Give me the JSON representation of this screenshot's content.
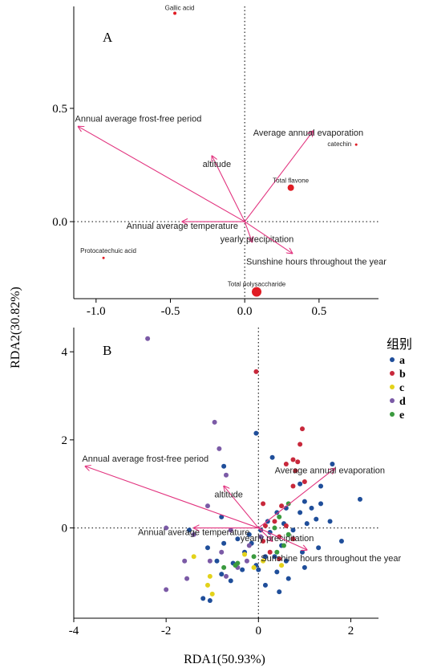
{
  "chart_data": [
    {
      "panel": "A",
      "type": "scatter",
      "xlim": [
        -1.15,
        0.9
      ],
      "ylim": [
        -0.34,
        0.95
      ],
      "x_ticks": [
        -1.0,
        -0.5,
        0.0,
        0.5
      ],
      "y_ticks": [
        0.0,
        0.5
      ],
      "grid": false,
      "species": [
        {
          "label": "Gallic acid",
          "x": -0.47,
          "y": 0.92,
          "size": 2
        },
        {
          "label": "catechin",
          "x": 0.75,
          "y": 0.34,
          "size": 1.5
        },
        {
          "label": "Total flavone",
          "x": 0.31,
          "y": 0.15,
          "size": 4
        },
        {
          "label": "Protocatechuic acid",
          "x": -0.95,
          "y": -0.16,
          "size": 1.5
        },
        {
          "label": "Total polysaccharide",
          "x": 0.08,
          "y": -0.31,
          "size": 6
        }
      ],
      "vectors": [
        {
          "label": "Annual average frost-free period",
          "x": -1.12,
          "y": 0.42
        },
        {
          "label": "Average annual evaporation",
          "x": 0.46,
          "y": 0.4
        },
        {
          "label": "altitude",
          "x": -0.22,
          "y": 0.29
        },
        {
          "label": "Annual average temperature",
          "x": -0.42,
          "y": 0.0
        },
        {
          "label": "yearly precipitation",
          "x": 0.05,
          "y": -0.09
        },
        {
          "label": "Sunshine hours throughout the year",
          "x": 0.32,
          "y": -0.14
        }
      ]
    },
    {
      "panel": "B",
      "type": "scatter",
      "xlim": [
        -4.0,
        2.6
      ],
      "ylim": [
        -2.05,
        4.55
      ],
      "x_ticks": [
        -4,
        -2,
        0,
        2
      ],
      "y_ticks": [
        0,
        2,
        4
      ],
      "grid": false,
      "legend": {
        "title": "组别",
        "placement": "right"
      },
      "groups": [
        {
          "name": "a",
          "color": "#1f4e9a",
          "points": [
            [
              -0.05,
              2.15
            ],
            [
              0.3,
              1.6
            ],
            [
              1.6,
              1.45
            ],
            [
              2.2,
              0.65
            ],
            [
              1.35,
              0.95
            ],
            [
              1.0,
              0.6
            ],
            [
              1.15,
              0.45
            ],
            [
              1.35,
              0.55
            ],
            [
              0.9,
              0.35
            ],
            [
              0.6,
              0.45
            ],
            [
              0.4,
              0.35
            ],
            [
              0.55,
              0.1
            ],
            [
              0.2,
              0.15
            ],
            [
              1.25,
              0.2
            ],
            [
              0.75,
              -0.05
            ],
            [
              1.8,
              -0.3
            ],
            [
              1.3,
              -0.45
            ],
            [
              0.95,
              -0.55
            ],
            [
              0.5,
              -0.4
            ],
            [
              0.05,
              -0.05
            ],
            [
              -0.2,
              -0.15
            ],
            [
              -0.45,
              -0.25
            ],
            [
              -0.75,
              -0.35
            ],
            [
              -1.1,
              -0.45
            ],
            [
              -0.3,
              -0.55
            ],
            [
              0.15,
              -0.65
            ],
            [
              0.6,
              -0.75
            ],
            [
              1.0,
              -0.9
            ],
            [
              0.4,
              -1.0
            ],
            [
              -0.05,
              -0.85
            ],
            [
              -0.55,
              -0.8
            ],
            [
              -0.8,
              -1.05
            ],
            [
              -1.2,
              -1.6
            ],
            [
              -1.05,
              -1.65
            ],
            [
              -0.6,
              -1.2
            ],
            [
              0.15,
              -1.3
            ],
            [
              0.45,
              -1.45
            ],
            [
              -0.35,
              -0.95
            ],
            [
              -0.75,
              1.4
            ],
            [
              -0.8,
              0.25
            ],
            [
              0.9,
              1.0
            ],
            [
              1.05,
              0.1
            ],
            [
              -0.15,
              -0.35
            ],
            [
              0.25,
              -0.1
            ],
            [
              0.65,
              -1.15
            ],
            [
              -1.5,
              -0.05
            ],
            [
              0.0,
              -0.95
            ],
            [
              -0.9,
              -0.75
            ],
            [
              0.35,
              -0.65
            ],
            [
              1.55,
              0.15
            ]
          ]
        },
        {
          "name": "b",
          "color": "#c8283b",
          "points": [
            [
              -0.05,
              3.55
            ],
            [
              0.95,
              2.25
            ],
            [
              0.9,
              1.9
            ],
            [
              0.75,
              1.55
            ],
            [
              0.85,
              1.5
            ],
            [
              0.6,
              1.45
            ],
            [
              0.8,
              1.3
            ],
            [
              1.0,
              1.05
            ],
            [
              0.75,
              0.95
            ],
            [
              0.5,
              0.5
            ],
            [
              0.35,
              0.15
            ],
            [
              0.15,
              0.05
            ],
            [
              0.6,
              0.05
            ],
            [
              0.45,
              -0.2
            ],
            [
              0.1,
              -0.3
            ],
            [
              0.25,
              -0.55
            ],
            [
              0.45,
              -0.7
            ],
            [
              0.75,
              -0.25
            ],
            [
              0.1,
              0.55
            ]
          ]
        },
        {
          "name": "c",
          "color": "#e3d21a",
          "points": [
            [
              -1.4,
              -0.65
            ],
            [
              -1.05,
              -1.1
            ],
            [
              -1.1,
              -1.3
            ],
            [
              -1.0,
              -1.5
            ],
            [
              -0.1,
              -0.9
            ],
            [
              0.1,
              -0.75
            ],
            [
              0.5,
              -0.85
            ],
            [
              -0.3,
              -0.6
            ]
          ]
        },
        {
          "name": "d",
          "color": "#7b5aa6",
          "points": [
            [
              -2.4,
              4.3
            ],
            [
              -0.95,
              2.4
            ],
            [
              -0.85,
              1.8
            ],
            [
              -0.7,
              1.2
            ],
            [
              -1.1,
              0.5
            ],
            [
              -2.0,
              0.0
            ],
            [
              -1.4,
              -0.15
            ],
            [
              -1.6,
              -0.75
            ],
            [
              -1.05,
              -0.75
            ],
            [
              -0.8,
              -0.55
            ],
            [
              -1.55,
              -1.15
            ],
            [
              -2.0,
              -1.4
            ],
            [
              -0.7,
              -1.1
            ],
            [
              -0.45,
              -0.9
            ],
            [
              -0.25,
              -0.75
            ],
            [
              -0.2,
              -0.4
            ],
            [
              -0.6,
              -0.05
            ],
            [
              0.05,
              -0.2
            ]
          ]
        },
        {
          "name": "e",
          "color": "#3a9a3e",
          "points": [
            [
              0.65,
              0.55
            ],
            [
              0.45,
              0.25
            ],
            [
              0.35,
              0.0
            ],
            [
              0.65,
              -0.15
            ],
            [
              0.55,
              -0.4
            ],
            [
              0.4,
              -0.55
            ],
            [
              -0.45,
              -0.8
            ],
            [
              -0.75,
              -0.9
            ],
            [
              -0.5,
              -0.85
            ],
            [
              -0.1,
              -0.65
            ]
          ]
        }
      ],
      "vectors": [
        {
          "label": "Annual average frost-free period",
          "x": -3.75,
          "y": 1.4
        },
        {
          "label": "Average annual evaporation",
          "x": 1.65,
          "y": 1.35
        },
        {
          "label": "altitude",
          "x": -0.75,
          "y": 0.95
        },
        {
          "label": "Annual average temperature",
          "x": -1.4,
          "y": 0.0
        },
        {
          "label": "yearly precipitation",
          "x": 0.3,
          "y": -0.3
        },
        {
          "label": "Sunshine hours throughout the year",
          "x": 1.05,
          "y": -0.5
        }
      ]
    }
  ],
  "shared": {
    "xlabel": "RDA1(50.93%)",
    "ylabel": "RDA2(30.82%)",
    "vector_color": "#e2347f",
    "point_color_A": "#e01c24"
  }
}
